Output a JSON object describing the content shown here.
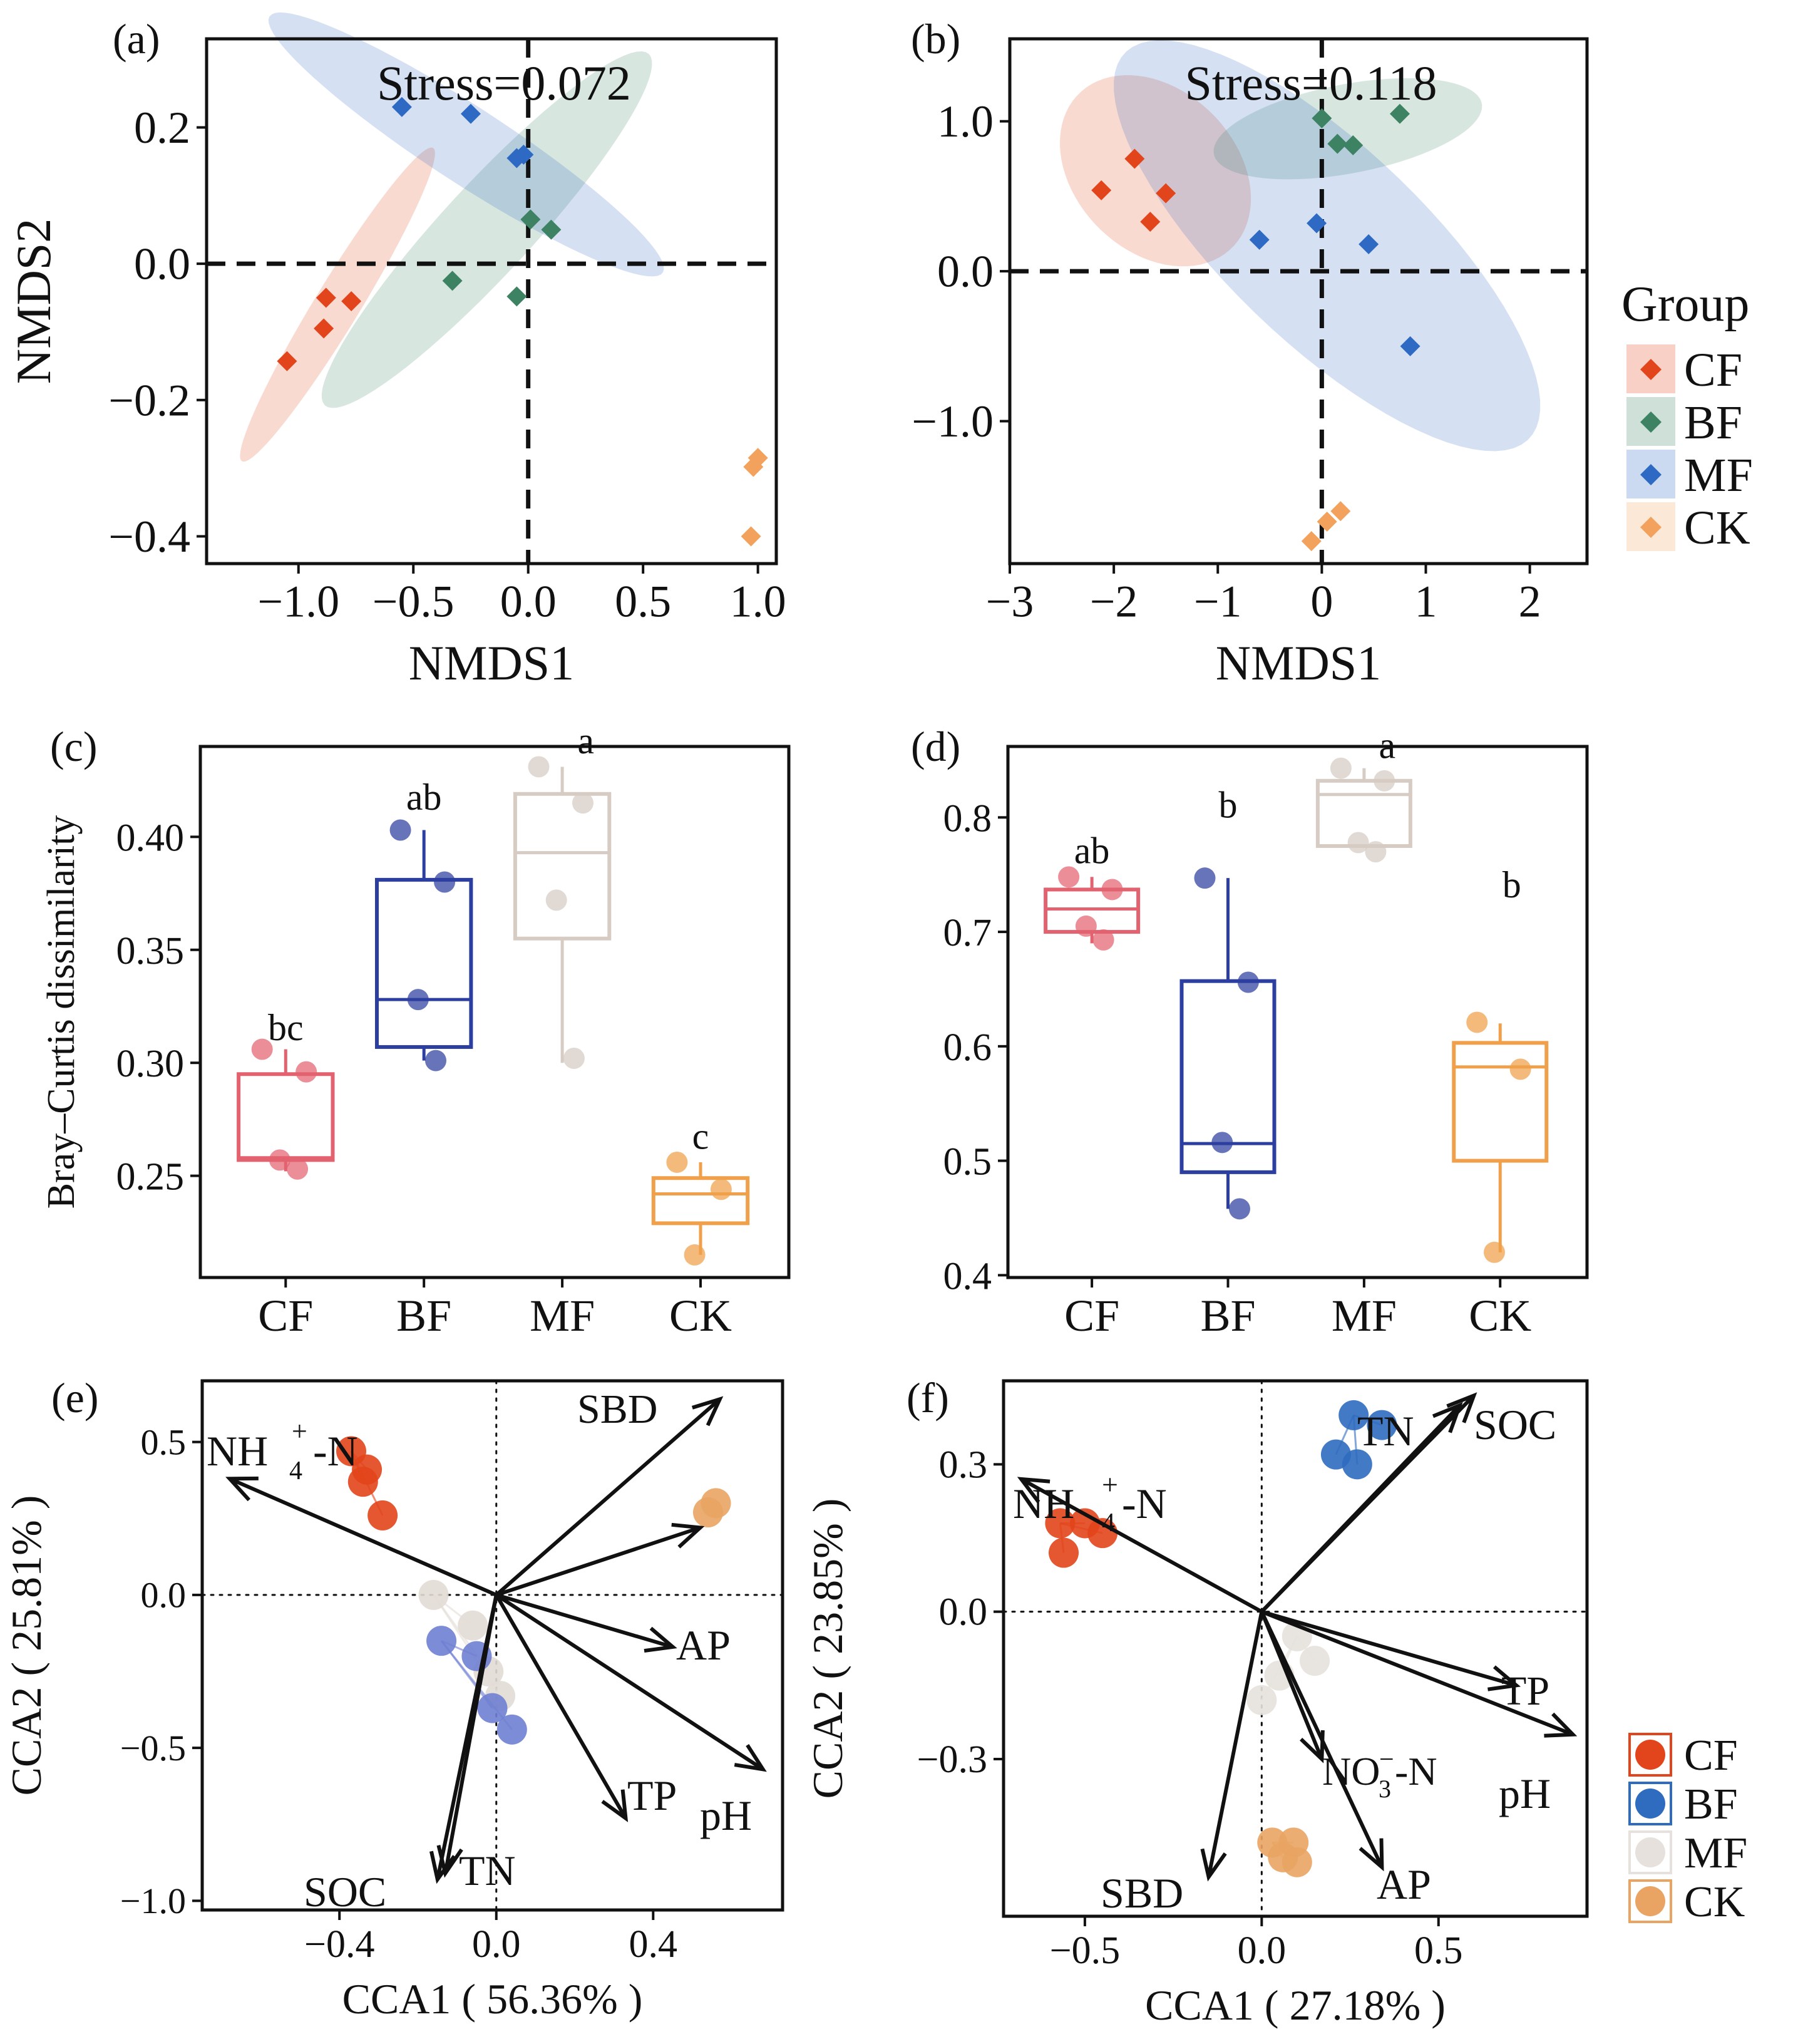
{
  "colors": {
    "CF": "#e2451b",
    "BF": "#3c8263",
    "MF": "#2e6ac4",
    "CK": "#f2a25c",
    "box_CF": "#e36270",
    "box_BF": "#2c3fa0",
    "box_MF": "#d6ccc4",
    "box_CK": "#f0a04a",
    "cca_CF": "#e2451b",
    "cca_BF": "#2f6bbf",
    "cca_MF": "#e6e1dc",
    "cca_CK": "#e9a463",
    "cca_MF_e": "#e2dcd6",
    "cca_BF_e": "#6f7fd2"
  },
  "chart_data": [
    {
      "id": "a",
      "panel_label": "(a)",
      "type": "scatter",
      "xlabel": "NMDS1",
      "ylabel": "NMDS2",
      "xlim": [
        -1.4,
        1.08
      ],
      "ylim": [
        -0.44,
        0.33
      ],
      "xticks": [
        -1.0,
        -0.5,
        0.0,
        0.5,
        1.0
      ],
      "xtick_labels": [
        "−1.0",
        "−0.5",
        "0.0",
        "0.5",
        "1.0"
      ],
      "yticks": [
        0.2,
        0.0,
        -0.2,
        -0.4
      ],
      "ytick_labels": [
        "0.2",
        "0.0",
        "−0.2",
        "−0.4"
      ],
      "annotation": "Stress=0.072",
      "ellipses": [
        {
          "group": "CF",
          "cx": -0.83,
          "cy": -0.06,
          "rx": 0.48,
          "ry": 0.055,
          "angle_deg": 28
        },
        {
          "group": "BF",
          "cx": -0.18,
          "cy": 0.05,
          "rx": 0.76,
          "ry": 0.09,
          "angle_deg": 19
        },
        {
          "group": "MF",
          "cx": -0.27,
          "cy": 0.175,
          "rx": 0.88,
          "ry": 0.065,
          "angle_deg": -12
        }
      ],
      "series": [
        {
          "name": "CF",
          "x": [
            -0.88,
            -0.77,
            -0.89,
            -1.05
          ],
          "y": [
            -0.05,
            -0.055,
            -0.095,
            -0.143
          ]
        },
        {
          "name": "BF",
          "x": [
            0.01,
            0.1,
            -0.33,
            -0.05
          ],
          "y": [
            0.065,
            0.05,
            -0.025,
            -0.048
          ]
        },
        {
          "name": "MF",
          "x": [
            -0.55,
            -0.25,
            -0.05,
            -0.02
          ],
          "y": [
            0.23,
            0.22,
            0.155,
            0.16
          ]
        },
        {
          "name": "CK",
          "x": [
            0.98,
            1.0,
            0.97
          ],
          "y": [
            -0.298,
            -0.285,
            -0.4
          ]
        }
      ]
    },
    {
      "id": "b",
      "panel_label": "(b)",
      "type": "scatter",
      "xlabel": "NMDS1",
      "ylabel": "",
      "xlim": [
        -3.0,
        2.55
      ],
      "ylim": [
        -1.95,
        1.55
      ],
      "xticks": [
        -3,
        -2,
        -1,
        0,
        1,
        2
      ],
      "xtick_labels": [
        "−3",
        "−2",
        "−1",
        "0",
        "1",
        "2"
      ],
      "yticks": [
        1.0,
        0.0,
        -1.0
      ],
      "ytick_labels": [
        "1.0",
        "0.0",
        "−1.0"
      ],
      "annotation": "Stress=0.118",
      "ellipses": [
        {
          "group": "CF",
          "cx": -1.6,
          "cy": 0.67,
          "rx": 0.95,
          "ry": 0.59,
          "angle_deg": -19
        },
        {
          "group": "BF",
          "cx": 0.25,
          "cy": 0.95,
          "rx": 1.3,
          "ry": 0.3,
          "angle_deg": 7
        },
        {
          "group": "MF",
          "cx": 0.05,
          "cy": 0.17,
          "rx": 2.35,
          "ry": 0.75,
          "angle_deg": -31
        }
      ],
      "series": [
        {
          "name": "CF",
          "x": [
            -1.8,
            -2.12,
            -1.5,
            -1.65
          ],
          "y": [
            0.75,
            0.54,
            0.52,
            0.33
          ]
        },
        {
          "name": "BF",
          "x": [
            0.0,
            0.15,
            0.3,
            0.75
          ],
          "y": [
            1.02,
            0.85,
            0.84,
            1.05
          ]
        },
        {
          "name": "MF",
          "x": [
            -0.6,
            -0.05,
            0.45,
            0.85
          ],
          "y": [
            0.21,
            0.32,
            0.18,
            -0.5
          ]
        },
        {
          "name": "CK",
          "x": [
            -0.1,
            0.05,
            0.18
          ],
          "y": [
            -1.8,
            -1.67,
            -1.6
          ]
        }
      ]
    },
    {
      "id": "c",
      "panel_label": "(c)",
      "type": "box",
      "ylabel": "Bray–Curtis dissimilarity",
      "ylim": [
        0.205,
        0.44
      ],
      "yticks": [
        0.25,
        0.3,
        0.35,
        0.4
      ],
      "ytick_labels": [
        "0.25",
        "0.30",
        "0.35",
        "0.40"
      ],
      "categories": [
        "CF",
        "BF",
        "MF",
        "CK"
      ],
      "boxes": [
        {
          "group": "CF",
          "min": 0.252,
          "q1": 0.257,
          "median": 0.258,
          "q3": 0.295,
          "max": 0.306,
          "letter": "bc",
          "points": [
            0.306,
            0.296,
            0.257,
            0.253
          ]
        },
        {
          "group": "BF",
          "min": 0.301,
          "q1": 0.307,
          "median": 0.328,
          "q3": 0.381,
          "max": 0.403,
          "letter": "ab",
          "points": [
            0.403,
            0.38,
            0.328,
            0.301
          ]
        },
        {
          "group": "MF",
          "min": 0.3,
          "q1": 0.355,
          "median": 0.393,
          "q3": 0.419,
          "max": 0.431,
          "letter": "a",
          "points": [
            0.431,
            0.415,
            0.372,
            0.302
          ]
        },
        {
          "group": "CK",
          "min": 0.215,
          "q1": 0.229,
          "median": 0.242,
          "q3": 0.249,
          "max": 0.256,
          "letter": "c",
          "points": [
            0.256,
            0.244,
            0.215
          ]
        }
      ]
    },
    {
      "id": "d",
      "panel_label": "(d)",
      "type": "box",
      "ylabel": "",
      "ylim": [
        0.398,
        0.862
      ],
      "yticks": [
        0.4,
        0.5,
        0.6,
        0.7,
        0.8
      ],
      "ytick_labels": [
        "0.4",
        "0.5",
        "0.6",
        "0.7",
        "0.8"
      ],
      "categories": [
        "CF",
        "BF",
        "MF",
        "CK"
      ],
      "boxes": [
        {
          "group": "CF",
          "min": 0.69,
          "q1": 0.7,
          "median": 0.72,
          "q3": 0.737,
          "max": 0.748,
          "letter": "ab",
          "points": [
            0.748,
            0.737,
            0.705,
            0.693
          ]
        },
        {
          "group": "BF",
          "min": 0.458,
          "q1": 0.49,
          "median": 0.515,
          "q3": 0.657,
          "max": 0.747,
          "letter": "b",
          "points": [
            0.747,
            0.656,
            0.516,
            0.458
          ]
        },
        {
          "group": "MF",
          "min": 0.775,
          "q1": 0.775,
          "median": 0.82,
          "q3": 0.832,
          "max": 0.843,
          "letter": "a",
          "points": [
            0.843,
            0.832,
            0.778,
            0.77
          ]
        },
        {
          "group": "CK",
          "min": 0.42,
          "q1": 0.5,
          "median": 0.582,
          "q3": 0.603,
          "max": 0.62,
          "letter": "b",
          "points": [
            0.621,
            0.58,
            0.42
          ]
        }
      ]
    },
    {
      "id": "e",
      "panel_label": "(e)",
      "type": "biplot",
      "xlabel": "CCA1 ( 56.36% )",
      "ylabel": "CCA2 ( 25.81% )",
      "xlim": [
        -0.75,
        0.73
      ],
      "ylim": [
        -1.03,
        0.7
      ],
      "xticks": [
        -0.4,
        0.0,
        0.4
      ],
      "xtick_labels": [
        "−0.4",
        "0.0",
        "0.4"
      ],
      "yticks": [
        0.5,
        0.0,
        -0.5,
        -1.0
      ],
      "ytick_labels": [
        "0.5",
        "0.0",
        "−0.5",
        "−1.0"
      ],
      "arrows": [
        {
          "label": "NH4+-N",
          "x": -0.68,
          "y": 0.38
        },
        {
          "label": "SBD",
          "x": 0.57,
          "y": 0.64
        },
        {
          "label": "",
          "x": 0.52,
          "y": 0.22
        },
        {
          "label": "AP",
          "x": 0.45,
          "y": -0.17
        },
        {
          "label": "pH",
          "x": 0.68,
          "y": -0.57
        },
        {
          "label": "TP",
          "x": 0.33,
          "y": -0.73
        },
        {
          "label": "SOC",
          "x": -0.15,
          "y": -0.93
        },
        {
          "label": "TN",
          "x": -0.13,
          "y": -0.91
        }
      ],
      "arrow_labels": [
        "NH",
        "4",
        "+",
        "-N",
        "SBD",
        "AP",
        "pH",
        "TP",
        "SOC",
        "TN"
      ],
      "series": [
        {
          "name": "CF",
          "x": [
            -0.37,
            -0.33,
            -0.34,
            -0.29
          ],
          "y": [
            0.47,
            0.41,
            0.37,
            0.26
          ]
        },
        {
          "name": "MF",
          "x": [
            -0.16,
            -0.06,
            -0.02,
            0.01
          ],
          "y": [
            0.0,
            -0.1,
            -0.25,
            -0.33
          ]
        },
        {
          "name": "BF",
          "x": [
            -0.14,
            -0.05,
            -0.01,
            0.04
          ],
          "y": [
            -0.15,
            -0.2,
            -0.37,
            -0.44
          ]
        },
        {
          "name": "CK",
          "x": [
            0.56,
            0.54
          ],
          "y": [
            0.3,
            0.27
          ]
        }
      ]
    },
    {
      "id": "f",
      "panel_label": "(f)",
      "type": "biplot",
      "xlabel": "CCA1 ( 27.18% )",
      "ylabel": "CCA2 ( 23.85% )",
      "xlim": [
        -0.73,
        0.92
      ],
      "ylim": [
        -0.62,
        0.47
      ],
      "xticks": [
        -0.5,
        0.0,
        0.5
      ],
      "xtick_labels": [
        "−0.5",
        "0.0",
        "0.5"
      ],
      "yticks": [
        0.3,
        0.0,
        -0.3
      ],
      "ytick_labels": [
        "0.3",
        "0.0",
        "−0.3"
      ],
      "arrows": [
        {
          "label": "NH4+-N",
          "x": -0.68,
          "y": 0.27
        },
        {
          "label": "TN",
          "x": 0.56,
          "y": 0.42
        },
        {
          "label": "SOC",
          "x": 0.6,
          "y": 0.44
        },
        {
          "label": "TP",
          "x": 0.72,
          "y": -0.15
        },
        {
          "label": "pH",
          "x": 0.88,
          "y": -0.25
        },
        {
          "label": "NO3--N",
          "x": 0.17,
          "y": -0.3
        },
        {
          "label": "AP",
          "x": 0.34,
          "y": -0.52
        },
        {
          "label": "SBD",
          "x": -0.15,
          "y": -0.54
        }
      ],
      "arrow_labels": [
        "NH",
        "4",
        "+",
        "-N",
        "TN",
        "SOC",
        "TP",
        "pH",
        "NO",
        "3",
        "−",
        "-N",
        "AP",
        "SBD"
      ],
      "series": [
        {
          "name": "CF",
          "x": [
            -0.57,
            -0.5,
            -0.45,
            -0.56
          ],
          "y": [
            0.18,
            0.18,
            0.16,
            0.12
          ]
        },
        {
          "name": "BF",
          "x": [
            0.26,
            0.34,
            0.21,
            0.27
          ],
          "y": [
            0.4,
            0.38,
            0.32,
            0.3
          ]
        },
        {
          "name": "MF",
          "x": [
            0.1,
            0.15,
            0.05,
            0.0
          ],
          "y": [
            -0.05,
            -0.1,
            -0.13,
            -0.18
          ]
        },
        {
          "name": "CK",
          "x": [
            0.03,
            0.09,
            0.06,
            0.1
          ],
          "y": [
            -0.47,
            -0.47,
            -0.5,
            -0.51
          ]
        }
      ]
    }
  ],
  "legend_top": {
    "title": "Group",
    "items": [
      "CF",
      "BF",
      "MF",
      "CK"
    ]
  },
  "legend_bottom": {
    "items": [
      "CF",
      "BF",
      "MF",
      "CK"
    ]
  }
}
